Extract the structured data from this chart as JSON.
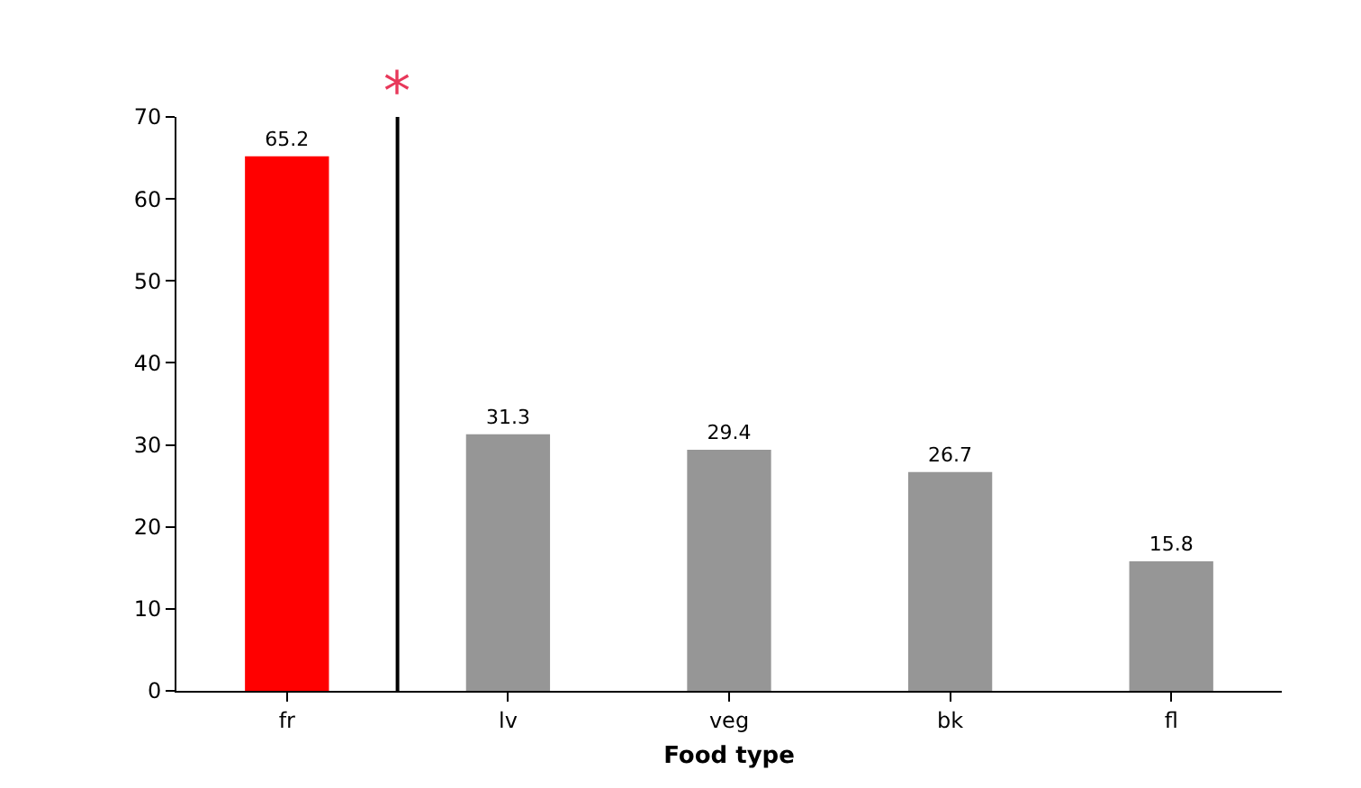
{
  "chart_data": {
    "type": "bar",
    "categories": [
      "fr",
      "lv",
      "veg",
      "bk",
      "fl"
    ],
    "values": [
      65.2,
      31.3,
      29.4,
      26.7,
      15.8
    ],
    "colors": [
      "#ff0000",
      "#969696",
      "#969696",
      "#969696",
      "#969696"
    ],
    "xlabel": "Food type",
    "ylim": [
      0,
      70
    ],
    "yticks": [
      0,
      10,
      20,
      30,
      40,
      50,
      60,
      70
    ],
    "data_labels": true,
    "annotations": [
      "*"
    ]
  }
}
